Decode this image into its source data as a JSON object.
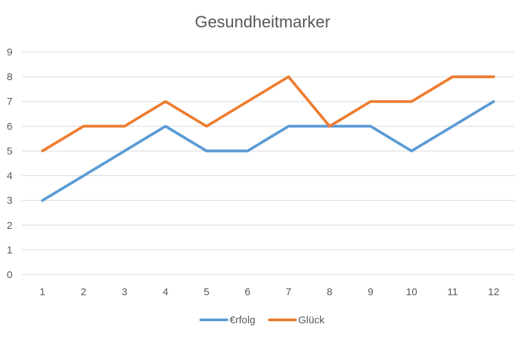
{
  "chart_data": {
    "type": "line",
    "title": "Gesundheitmarker",
    "xlabel": "",
    "ylabel": "",
    "x": [
      1,
      2,
      3,
      4,
      5,
      6,
      7,
      8,
      9,
      10,
      11,
      12
    ],
    "ylim": [
      0,
      9
    ],
    "yticks": [
      0,
      1,
      2,
      3,
      4,
      5,
      6,
      7,
      8,
      9
    ],
    "grid": true,
    "legend_position": "bottom",
    "series": [
      {
        "name": "€rfolg",
        "color": "#5b9bd5",
        "values": [
          3,
          4,
          5,
          6,
          5,
          5,
          6,
          6,
          6,
          5,
          6,
          7
        ]
      },
      {
        "name": "Glück",
        "color": "#ed7d31",
        "values": [
          5,
          6,
          6,
          7,
          6,
          7,
          8,
          6,
          7,
          7,
          8,
          8
        ]
      }
    ]
  }
}
